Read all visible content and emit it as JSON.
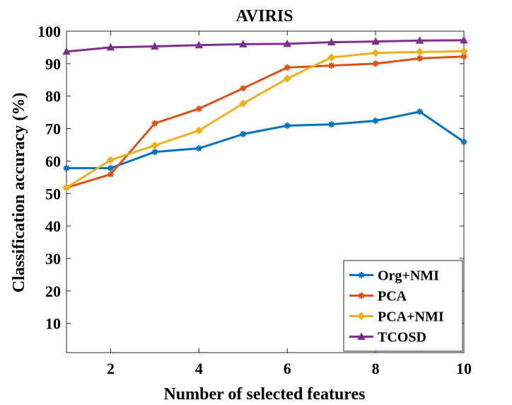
{
  "chart_data": {
    "type": "line",
    "title": "AVIRIS",
    "xlabel": "Number of selected features",
    "ylabel": "Classification accuracy (%)",
    "x": [
      1,
      2,
      3,
      4,
      5,
      6,
      7,
      8,
      9,
      10
    ],
    "xlim": [
      1,
      10
    ],
    "ylim": [
      1,
      100
    ],
    "xticks": [
      2,
      4,
      6,
      8,
      10
    ],
    "yticks": [
      10,
      20,
      30,
      40,
      50,
      60,
      70,
      80,
      90,
      100
    ],
    "grid": false,
    "legend_position": "bottom-right",
    "series": [
      {
        "name": "Org+NMI",
        "color": "#0072BD",
        "marker": "asterisk",
        "values": [
          57.8,
          57.8,
          62.8,
          63.9,
          68.3,
          70.9,
          71.3,
          72.4,
          75.2,
          65.9
        ]
      },
      {
        "name": "PCA",
        "color": "#D95319",
        "marker": "asterisk",
        "values": [
          51.8,
          55.9,
          71.6,
          76.1,
          82.4,
          88.8,
          89.4,
          90.0,
          91.6,
          92.2
        ]
      },
      {
        "name": "PCA+NMI",
        "color": "#EDB120",
        "marker": "diamond",
        "values": [
          51.8,
          60.3,
          64.8,
          69.4,
          77.7,
          85.4,
          91.9,
          93.3,
          93.6,
          93.8
        ]
      },
      {
        "name": "TCOSD",
        "color": "#7E2F8E",
        "marker": "triangle",
        "values": [
          93.7,
          95.0,
          95.3,
          95.7,
          96.0,
          96.1,
          96.6,
          96.8,
          97.1,
          97.2
        ]
      }
    ]
  }
}
